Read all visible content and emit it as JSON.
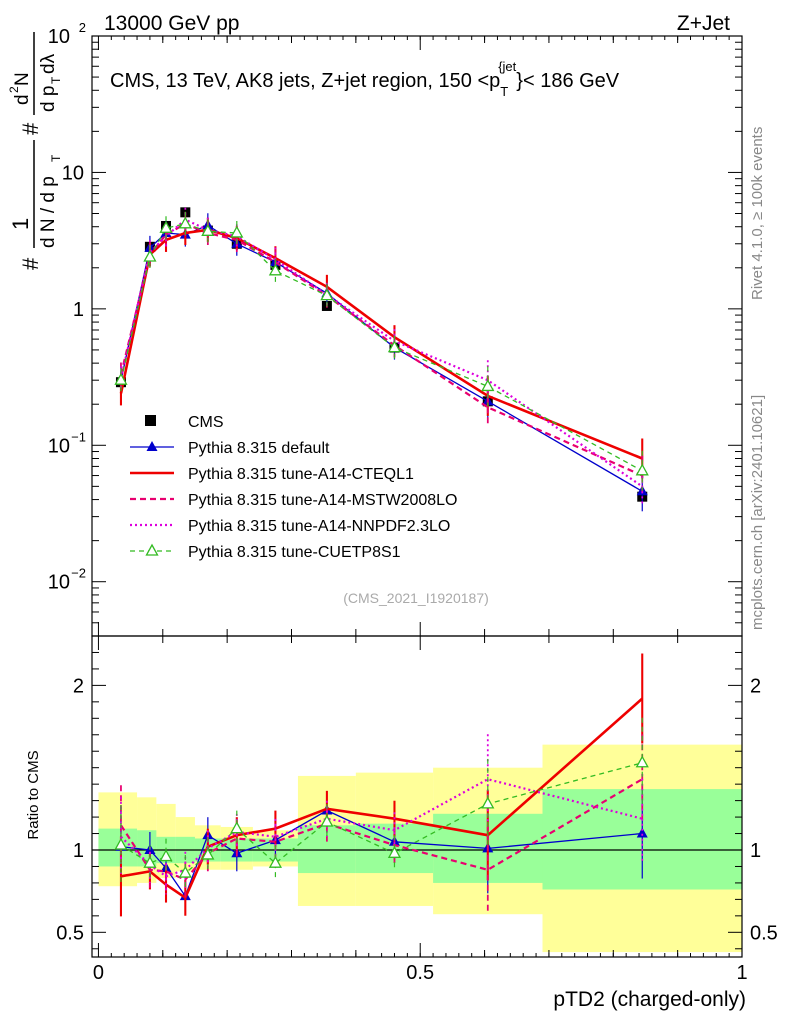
{
  "header": {
    "left": "13000 GeV pp",
    "right": "Z+Jet"
  },
  "side": {
    "rivet": "Rivet 4.1.0, ≥ 100k events",
    "mcplots": "mcplots.cern.ch [arXiv:2401.10621]"
  },
  "chart_data": [
    {
      "type": "line",
      "title": "CMS, 13 TeV, AK8 jets, Z+jet region, 150 <p_T^{jet}< 186 GeV",
      "title_main": "CMS, 13 TeV, AK8 jets, Z+jet region, 150 <p",
      "title_sub": "T",
      "title_sup": "{jet",
      "title_tail": "}< 186 GeV",
      "analysis_tag": "(CMS_2021_I1920187)",
      "ylabel": "# 1 / (d N / d p_T) # d²N / (d p_T dλ)",
      "ylabel_parts": {
        "hash": "#",
        "one": "1",
        "dN": "d N / d p",
        "T": "T",
        "d2N": "d",
        "sq": "2",
        "N": "N",
        "dpdl": "d p",
        "dl": " dλ"
      },
      "yscale": "log",
      "ylim": [
        0.004,
        100
      ],
      "xlim": [
        -0.01,
        1.0
      ],
      "yticks": [
        {
          "v": 100,
          "label": "10",
          "sup": "2"
        },
        {
          "v": 10,
          "label": "10",
          "sup": ""
        },
        {
          "v": 1,
          "label": "1",
          "sup": ""
        },
        {
          "v": 0.1,
          "label": "10",
          "sup": "−1"
        },
        {
          "v": 0.01,
          "label": "10",
          "sup": "−2"
        }
      ],
      "x": [
        0.035,
        0.08,
        0.105,
        0.135,
        0.17,
        0.215,
        0.275,
        0.355,
        0.46,
        0.605,
        0.845
      ],
      "series": [
        {
          "name": "CMS",
          "style": "data",
          "color": "#000000",
          "values": [
            0.29,
            2.85,
            4.05,
            5.1,
            3.75,
            3.0,
            2.1,
            1.05,
            0.52,
            0.21,
            0.042
          ]
        },
        {
          "name": "Pythia 8.315 default",
          "style": "solid-triangle",
          "color": "#0000cc",
          "values": [
            0.3,
            2.8,
            3.6,
            3.5,
            4.1,
            3.0,
            2.2,
            1.3,
            0.52,
            0.21,
            0.046
          ]
        },
        {
          "name": "Pythia 8.315 tune-A14-CTEQL1",
          "style": "solid-thick",
          "color": "#ee0000",
          "values": [
            0.24,
            2.5,
            3.2,
            3.6,
            3.8,
            3.3,
            2.35,
            1.45,
            0.62,
            0.23,
            0.08
          ]
        },
        {
          "name": "Pythia 8.315 tune-A14-MSTW2008LO",
          "style": "dashed",
          "color": "#e8006f",
          "values": [
            0.33,
            2.5,
            3.5,
            4.2,
            3.6,
            3.2,
            2.2,
            1.25,
            0.54,
            0.19,
            0.06
          ]
        },
        {
          "name": "Pythia 8.315 tune-A14-NNPDF2.3LO",
          "style": "dotted",
          "color": "#dd00dd",
          "values": [
            0.31,
            2.6,
            3.4,
            4.5,
            3.8,
            3.4,
            2.3,
            1.27,
            0.58,
            0.3,
            0.05
          ]
        },
        {
          "name": "Pythia 8.315 tune-CUETP8S1",
          "style": "dashed-open-triangle",
          "color": "#33bb22",
          "values": [
            0.3,
            2.4,
            3.9,
            4.2,
            3.7,
            3.6,
            1.9,
            1.25,
            0.52,
            0.27,
            0.065
          ]
        }
      ]
    },
    {
      "type": "line",
      "ylabel": "Ratio to CMS",
      "xlabel": "pTD2 (charged-only)",
      "ylim": [
        0.35,
        2.3
      ],
      "xlim": [
        -0.01,
        1.0
      ],
      "yticks": [
        0.5,
        1,
        2
      ],
      "xticks": [
        {
          "v": 0,
          "label": "0"
        },
        {
          "v": 0.5,
          "label": "0.5"
        },
        {
          "v": 1,
          "label": "1"
        }
      ],
      "bins": [
        0.0,
        0.06,
        0.09,
        0.12,
        0.15,
        0.19,
        0.24,
        0.31,
        0.4,
        0.52,
        0.69,
        1.0
      ],
      "band_stat": [
        [
          0.9,
          1.13
        ],
        [
          0.9,
          1.12
        ],
        [
          0.92,
          1.08
        ],
        [
          0.92,
          1.08
        ],
        [
          0.93,
          1.07
        ],
        [
          0.93,
          1.07
        ],
        [
          0.93,
          1.07
        ],
        [
          0.86,
          1.15
        ],
        [
          0.86,
          1.16
        ],
        [
          0.8,
          1.22
        ],
        [
          0.76,
          1.37
        ]
      ],
      "band_total": [
        [
          0.78,
          1.35
        ],
        [
          0.8,
          1.32
        ],
        [
          0.83,
          1.28
        ],
        [
          0.87,
          1.2
        ],
        [
          0.88,
          1.15
        ],
        [
          0.88,
          1.14
        ],
        [
          0.9,
          1.12
        ],
        [
          0.66,
          1.45
        ],
        [
          0.66,
          1.47
        ],
        [
          0.61,
          1.5
        ],
        [
          0.38,
          1.64
        ]
      ],
      "x": [
        0.035,
        0.08,
        0.105,
        0.135,
        0.17,
        0.215,
        0.275,
        0.355,
        0.46,
        0.605,
        0.845
      ],
      "series": [
        {
          "name": "Pythia 8.315 default",
          "color": "#0000cc",
          "values": [
            1.02,
            1.0,
            0.89,
            0.72,
            1.09,
            0.98,
            1.06,
            1.24,
            1.05,
            1.01,
            1.1
          ]
        },
        {
          "name": "Pythia 8.315 tune-A14-CTEQL1",
          "color": "#ee0000",
          "values": [
            0.84,
            0.87,
            0.79,
            0.71,
            1.02,
            1.09,
            1.13,
            1.25,
            1.19,
            1.09,
            1.92
          ]
        },
        {
          "name": "Pythia 8.315 tune-A14-MSTW2008LO",
          "color": "#e8006f",
          "values": [
            1.15,
            0.88,
            0.87,
            0.82,
            0.98,
            1.07,
            1.05,
            1.16,
            1.03,
            0.88,
            1.43
          ]
        },
        {
          "name": "Pythia 8.315 tune-A14-NNPDF2.3LO",
          "color": "#dd00dd",
          "values": [
            1.08,
            0.91,
            0.84,
            0.88,
            1.01,
            1.11,
            1.08,
            1.19,
            1.12,
            1.43,
            1.19
          ]
        },
        {
          "name": "Pythia 8.315 tune-CUETP8S1",
          "color": "#33bb22",
          "values": [
            1.03,
            0.92,
            0.96,
            0.86,
            0.97,
            1.13,
            0.92,
            1.17,
            0.98,
            1.28,
            1.53
          ]
        }
      ]
    }
  ]
}
